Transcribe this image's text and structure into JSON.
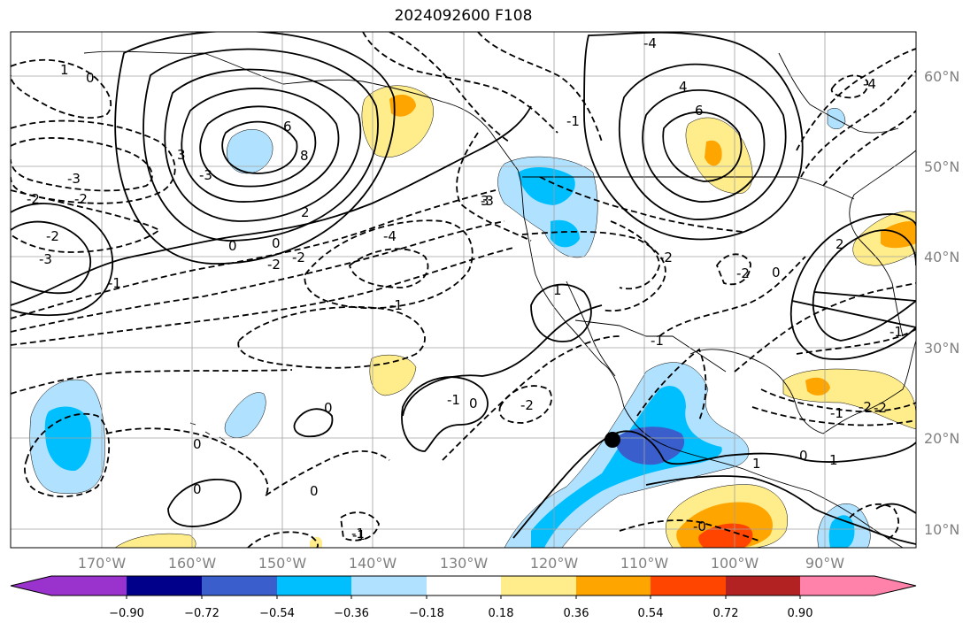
{
  "title": "2024092600 F108",
  "longitude_labels": [
    "170°W",
    "160°W",
    "150°W",
    "140°W",
    "130°W",
    "120°W",
    "110°W",
    "100°W",
    "90°W"
  ],
  "latitude_labels": [
    "60°N",
    "50°N",
    "40°N",
    "30°N",
    "20°N",
    "10°N"
  ],
  "colorbar": {
    "ticks": [
      "−0.90",
      "−0.72",
      "−0.54",
      "−0.36",
      "−0.18",
      "0.18",
      "0.36",
      "0.54",
      "0.72",
      "0.90"
    ],
    "colors": [
      "#9a32cd",
      "#00008b",
      "#3a5fcd",
      "#00bfff",
      "#b0e2ff",
      "#ffffff",
      "#ffec8b",
      "#ffa500",
      "#ff4500",
      "#b22222",
      "#ff82ab"
    ]
  },
  "contour_labels": [
    "0",
    "1",
    "-3",
    "-2",
    "-3",
    "-2",
    "-1",
    "6",
    "8",
    "3",
    "2",
    "0",
    "0",
    "-2",
    "-2",
    "-4",
    "-3",
    "-1",
    "4",
    "6",
    "-3",
    "-2",
    "-1",
    "-4",
    "-4",
    "2",
    "-2",
    "-2",
    "-1",
    "-2",
    "-2",
    "1",
    "0",
    "-1",
    "0",
    "0",
    "0",
    "0",
    "-1",
    "-1",
    "1",
    "0",
    "-1",
    "1",
    "-0",
    "-2",
    "-1",
    "3",
    "0"
  ],
  "map": {
    "land_color": "#ffffff",
    "contour_color": "#000000",
    "marker": "black-dot"
  }
}
